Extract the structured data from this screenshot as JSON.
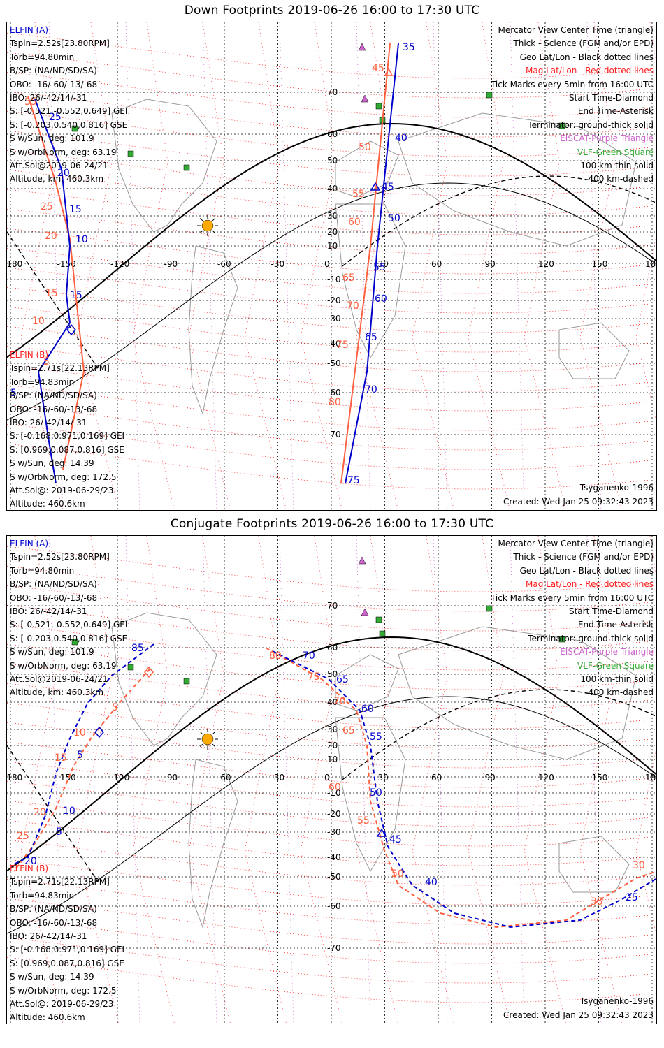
{
  "panels": [
    {
      "id": "down",
      "title": "Down Footprints 2019-06-26 16:00 to 17:30 UTC",
      "lon_ticks": [
        "-180",
        "-150",
        "-120",
        "-90",
        "-60",
        "-30",
        "0",
        "30",
        "60",
        "90",
        "120",
        "150",
        "180"
      ],
      "lat_ticks": [
        "70",
        "60",
        "50",
        "40",
        "30",
        "20",
        "10",
        "-10",
        "-20",
        "-30",
        "-40",
        "-50",
        "-60",
        "-70"
      ],
      "sat_a": {
        "name": "ELFIN (A)",
        "lines": [
          "Tspin=2.52s[23.80RPM]",
          "Torb=94.80min",
          "B/SP: (NA/ND/SD/SA)",
          "OBO: -16/-60/-13/-68",
          "IBO: 26/-42/14/-31",
          "S: [-0.521,-0.552,0.649] GEI",
          "S: [-0.203,0.540,0.816] GSE",
          "S w/Sun, deg: 101.9",
          "S w/OrbNorm, deg: 63.19",
          "Att.Sol@2019-06-24/21",
          "Altitude, km: 460.3km"
        ]
      },
      "sat_b": {
        "name": "ELFIN (B)",
        "lines": [
          "Tspin=2.71s[22.13RPM]",
          "Torb=94.83min",
          "B/SP: (NA/ND/SD/SA)",
          "OBO: -16/-60/-13/-68",
          "IBO: 26/-42/14/-31",
          "S: [-0.168,0.971,0.169] GEI",
          "S: [0.969,0.087,0.816] GSE",
          "S w/Sun, deg: 14.39",
          "S w/OrbNorm, deg: 172.5",
          "Att.Sol@: 2019-06-29/23",
          "Altitude: 460.6km"
        ]
      },
      "legend": [
        "Mercator View Center Time (triangle)",
        "Thick - Science (FGM and/or EPD)",
        "Geo Lat/Lon - Black dotted lines",
        "Mag Lat/Lon - Red dotted lines",
        "Tick Marks every 5min from 16:00 UTC",
        "Start Time-Diamond",
        "End Time-Asterisk",
        "Terminator: ground-thick solid",
        "EISCAT-Purple Triangle",
        "VLF-Green Square",
        "100 km-thin solid",
        "400 km-dashed"
      ],
      "model": "Tsyganenko-1996",
      "created": "Created: Wed Jan 25 09:32:43 2023",
      "track_a_labels": [
        "35",
        "40",
        "45",
        "50",
        "55",
        "60",
        "65",
        "70",
        "75",
        "25",
        "20",
        "15",
        "10",
        "15",
        "5"
      ],
      "track_b_labels": [
        "45",
        "50",
        "55",
        "60",
        "65",
        "70",
        "75",
        "80",
        "35",
        "25",
        "20",
        "15",
        "10",
        "5"
      ]
    },
    {
      "id": "conjugate",
      "title": "Conjugate Footprints 2019-06-26 16:00 to 17:30 UTC",
      "lon_ticks": [
        "-180",
        "-150",
        "-120",
        "-90",
        "-60",
        "-30",
        "0",
        "30",
        "60",
        "90",
        "120",
        "150",
        "180"
      ],
      "lat_ticks": [
        "70",
        "60",
        "50",
        "40",
        "30",
        "20",
        "10",
        "-10",
        "-20",
        "-30",
        "-40",
        "-50",
        "-60",
        "-70"
      ],
      "sat_a": {
        "name": "ELFIN (A)",
        "lines": [
          "Tspin=2.52s[23.80RPM]",
          "Torb=94.80min",
          "B/SP: (NA/ND/SD/SA)",
          "OBO: -16/-60/-13/-68",
          "IBO: 26/-42/14/-31",
          "S: [-0.521,-0.552,0.649] GEI",
          "S: [-0.203,0.540,0.816] GSE",
          "S w/Sun, deg: 101.9",
          "S w/OrbNorm, deg: 63.19",
          "Att.Sol@2019-06-24/21",
          "Altitude, km: 460.3km"
        ]
      },
      "sat_b": {
        "name": "ELFIN (B)",
        "lines": [
          "Tspin=2.71s[22.13RPM]",
          "Torb=94.83min",
          "B/SP: (NA/ND/SD/SA)",
          "OBO: -16/-60/-13/-68",
          "IBO: 26/-42/14/-31",
          "S: [-0.168,0.971,0.169] GEI",
          "S: [0.969,0.087,0.816] GSE",
          "S w/Sun, deg: 14.39",
          "S w/OrbNorm, deg: 172.5",
          "Att.Sol@: 2019-06-29/23",
          "Altitude: 460.6km"
        ]
      },
      "legend": [
        "Mercator View Center Time (triangle)",
        "Thick - Science (FGM and/or EPD)",
        "Geo Lat/Lon - Black dotted lines",
        "Mag Lat/Lon - Red dotted lines",
        "Tick Marks every 5min from 16:00 UTC",
        "Start Time-Diamond",
        "End Time-Asterisk",
        "Terminator: ground-thick solid",
        "EISCAT-Purple Triangle",
        "VLF-Green Square",
        "100 km-thin solid",
        "400 km-dashed"
      ],
      "model": "Tsyganenko-1996",
      "created": "Created: Wed Jan 25 09:32:43 2023",
      "track_a_labels": [
        "85",
        "70",
        "65",
        "60",
        "55",
        "50",
        "45",
        "40",
        "25",
        "20",
        "10",
        "5",
        "5"
      ],
      "track_b_labels": [
        "80",
        "75",
        "70",
        "65",
        "60",
        "55",
        "50",
        "35",
        "30",
        "5",
        "10",
        "15",
        "20",
        "25"
      ]
    }
  ],
  "colors": {
    "sat_a": "#0000cc",
    "sat_b": "#ff6040",
    "mag_grid": "#ff2020",
    "geo_grid": "#000000",
    "eiscat": "#cc66cc",
    "vlf": "#33aa33",
    "sun": "#ffaa00"
  }
}
